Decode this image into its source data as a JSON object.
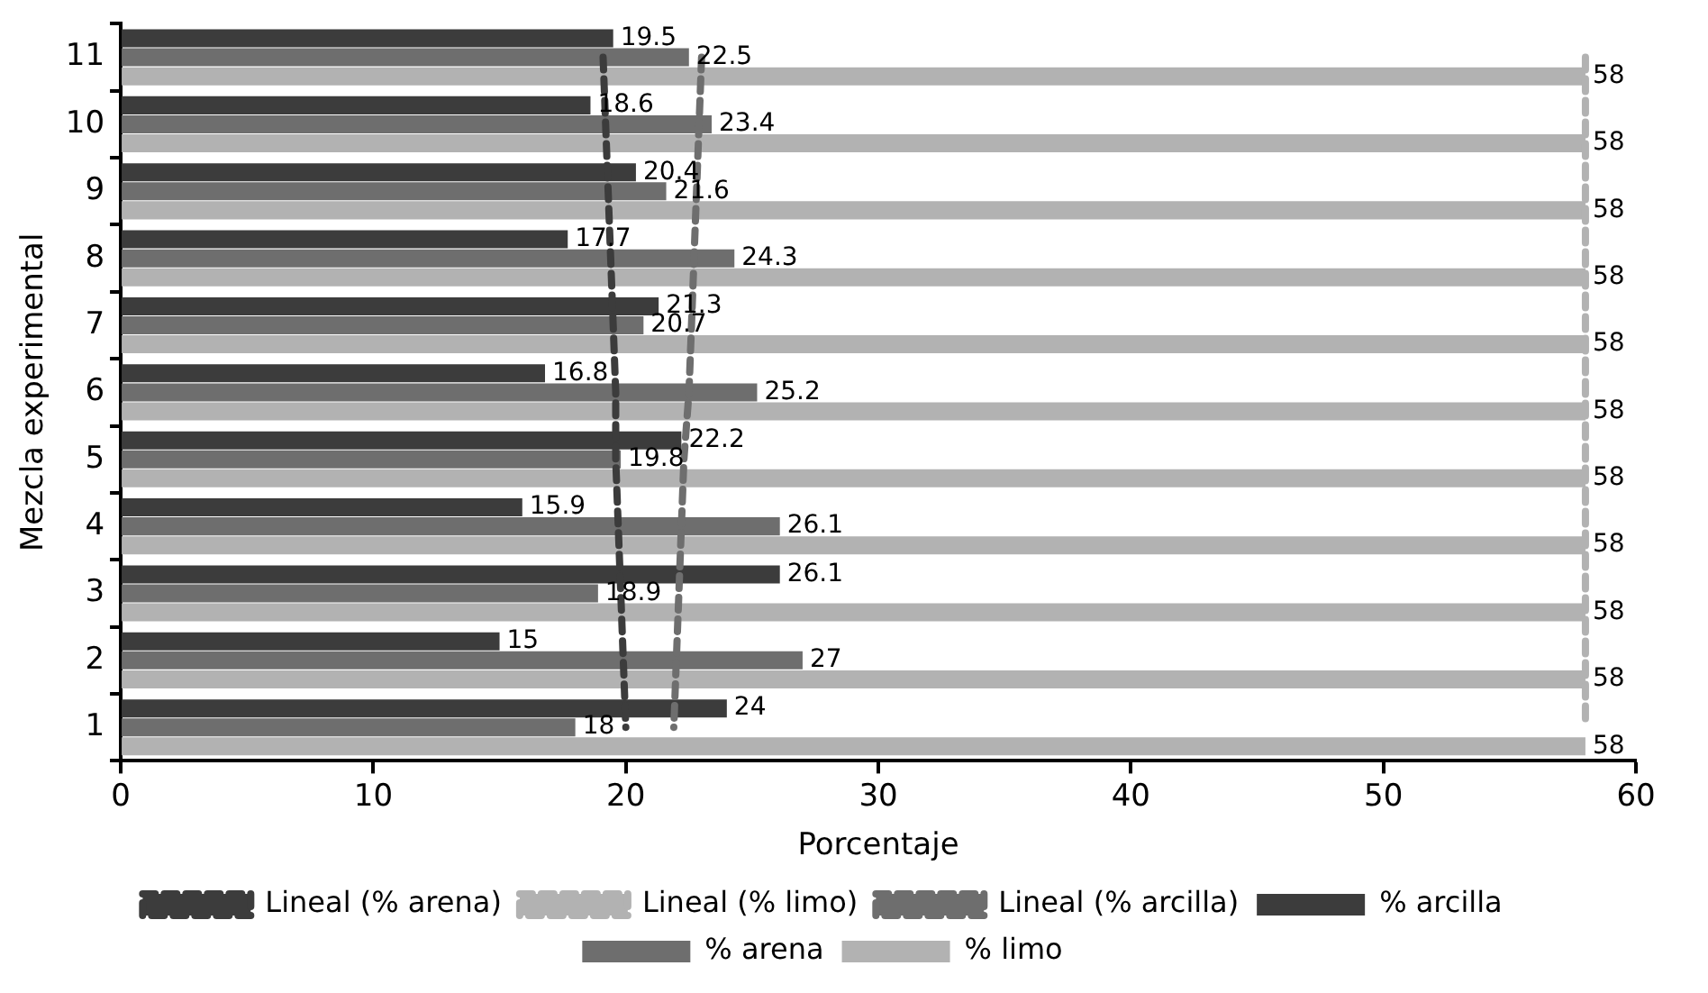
{
  "chart_data": {
    "type": "bar",
    "orientation": "horizontal",
    "xlabel": "Porcentaje",
    "ylabel": "Mezcla experimental",
    "categories": [
      "11",
      "10",
      "9",
      "8",
      "7",
      "6",
      "5",
      "4",
      "3",
      "2",
      "1"
    ],
    "series": [
      {
        "name": "% arcilla",
        "color": "#3c3c3c",
        "values": [
          19.5,
          18.6,
          20.4,
          17.7,
          21.3,
          16.8,
          22.2,
          15.9,
          26.1,
          15,
          24
        ],
        "value_labels": [
          "19.5",
          "18.6",
          "20.4",
          "17.7",
          "21.3",
          "16.8",
          "22.2",
          "15.9",
          "26.1",
          "15",
          "24"
        ]
      },
      {
        "name": "% arena",
        "color": "#6e6e6e",
        "values": [
          22.5,
          23.4,
          21.6,
          24.3,
          20.7,
          25.2,
          19.8,
          26.1,
          18.9,
          27,
          18
        ],
        "value_labels": [
          "22.5",
          "23.4",
          "21.6",
          "24.3",
          "20.7",
          "25.2",
          "19.8",
          "26.1",
          "18.9",
          "27",
          "18"
        ]
      },
      {
        "name": "% limo",
        "color": "#b2b2b2",
        "values": [
          58,
          58,
          58,
          58,
          58,
          58,
          58,
          58,
          58,
          58,
          58
        ],
        "value_labels": [
          "58",
          "58",
          "58",
          "58",
          "58",
          "58",
          "58",
          "58",
          "58",
          "58",
          "58"
        ]
      },
      {
        "name": "Lineal (% arena)",
        "type": "line",
        "line_style": "dashed",
        "color": "#3c3c3c",
        "values": [
          19.1,
          19.2,
          19.3,
          19.4,
          19.5,
          19.6,
          19.6,
          19.7,
          19.8,
          19.9,
          20.0
        ]
      },
      {
        "name": "Lineal (% limo)",
        "type": "line",
        "line_style": "dashed",
        "color": "#b2b2b2",
        "values": [
          58,
          58,
          58,
          58,
          58,
          58,
          58,
          58,
          58,
          58,
          58
        ]
      },
      {
        "name": "Lineal (% arcilla)",
        "type": "line",
        "line_style": "dashed",
        "color": "#6e6e6e",
        "values": [
          23.0,
          22.9,
          22.8,
          22.7,
          22.6,
          22.5,
          22.3,
          22.2,
          22.1,
          22.0,
          21.9
        ]
      }
    ],
    "xlim": [
      0,
      60
    ],
    "xticks": [
      0,
      10,
      20,
      30,
      40,
      50,
      60
    ],
    "grid": false,
    "legend": "bottom"
  }
}
